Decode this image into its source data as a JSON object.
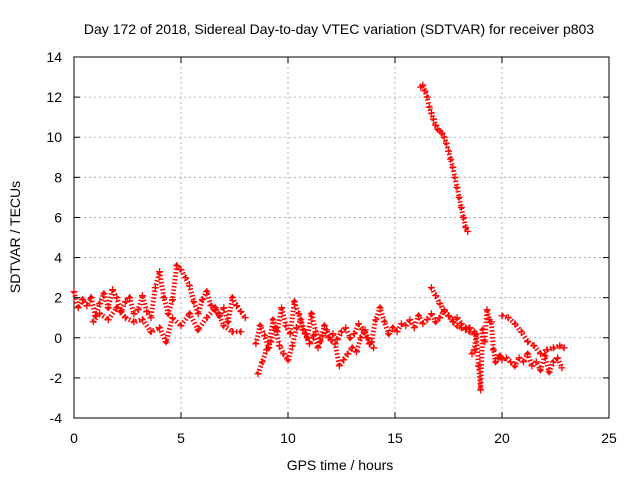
{
  "chart_data": {
    "type": "scatter",
    "title": "Day 172 of 2018, Sidereal Day-to-day VTEC variation (SDTVAR) for receiver p803",
    "xlabel": "GPS time / hours",
    "ylabel": "SDTVAR / TECUs",
    "xlim": [
      0,
      25
    ],
    "ylim": [
      -4,
      14
    ],
    "xticks": [
      0,
      5,
      10,
      15,
      20,
      25
    ],
    "yticks": [
      -4,
      -2,
      0,
      2,
      4,
      6,
      8,
      10,
      12,
      14
    ],
    "grid": true,
    "marker": "+",
    "series": [
      {
        "name": "SDTVAR",
        "color": "#ff0000",
        "segments": [
          {
            "x": [
              0.0,
              0.2,
              0.4,
              0.6,
              0.8,
              1.0,
              1.2,
              1.4,
              1.6,
              1.8,
              2.0,
              2.2,
              2.4,
              2.6,
              2.8,
              3.0,
              3.2,
              3.4,
              3.6,
              3.8,
              4.0,
              4.2,
              4.4,
              4.6,
              4.8,
              5.0,
              5.2,
              5.4,
              5.6,
              5.8,
              6.0,
              6.2,
              6.4,
              6.6,
              6.8,
              7.0,
              7.2,
              7.4,
              7.6,
              7.8,
              8.0
            ],
            "y": [
              2.3,
              1.5,
              1.9,
              1.6,
              2.0,
              1.1,
              1.7,
              2.2,
              1.5,
              2.4,
              2.0,
              1.3,
              1.8,
              2.0,
              1.2,
              1.4,
              2.1,
              1.3,
              1.0,
              2.5,
              3.3,
              2.0,
              1.2,
              1.9,
              3.6,
              3.4,
              3.0,
              2.6,
              1.8,
              1.2,
              1.9,
              2.3,
              1.6,
              1.4,
              1.1,
              1.5,
              0.8,
              2.0,
              1.6,
              1.3,
              1.0
            ]
          },
          {
            "x": [
              0.9,
              1.2,
              1.6,
              2.0,
              2.4,
              2.8,
              3.2,
              3.6,
              4.0,
              4.3,
              4.6,
              5.0,
              5.4,
              5.8,
              6.2,
              6.6,
              7.0,
              7.4,
              7.8
            ],
            "y": [
              0.8,
              1.2,
              0.9,
              1.5,
              1.0,
              0.8,
              0.9,
              0.3,
              0.5,
              -0.2,
              1.0,
              0.6,
              1.2,
              0.4,
              1.0,
              1.5,
              0.6,
              0.3,
              0.3
            ]
          },
          {
            "x": [
              8.5,
              8.7,
              8.9,
              9.1,
              9.3,
              9.5,
              9.7,
              9.9,
              10.1,
              10.3,
              10.5,
              10.7,
              10.9,
              11.1,
              11.3,
              11.5,
              11.7,
              11.9,
              12.1,
              12.3,
              12.5,
              12.7,
              12.9,
              13.1,
              13.3,
              13.5,
              13.7,
              13.9,
              14.1,
              14.3,
              14.5,
              14.7,
              14.9,
              15.1,
              15.3,
              15.5,
              15.7,
              15.9,
              16.1,
              16.3,
              16.5,
              16.7,
              16.9,
              17.1,
              17.3,
              17.5,
              17.7,
              17.9,
              18.1,
              18.3,
              18.5,
              18.7
            ],
            "y": [
              -0.3,
              0.6,
              0.1,
              -0.5,
              0.9,
              0.3,
              1.5,
              0.6,
              0.2,
              1.8,
              1.2,
              0.4,
              0.0,
              1.2,
              0.3,
              -0.2,
              0.6,
              0.0,
              0.2,
              -0.1,
              0.3,
              0.5,
              0.0,
              0.2,
              0.7,
              0.4,
              0.0,
              -0.2,
              0.9,
              1.5,
              0.8,
              0.2,
              0.5,
              0.3,
              0.7,
              0.6,
              0.9,
              0.5,
              1.1,
              0.7,
              0.9,
              1.2,
              0.8,
              1.0,
              1.4,
              1.1,
              0.9,
              1.0,
              0.7,
              0.5,
              0.5,
              0.3
            ]
          },
          {
            "x": [
              8.6,
              8.8,
              9.0,
              9.2,
              9.4,
              9.6,
              9.8,
              10.0,
              10.2,
              10.4,
              10.6,
              10.8,
              11.0,
              11.2,
              11.4,
              11.6,
              11.8,
              12.0,
              12.2,
              12.4,
              12.6,
              12.8,
              13.0,
              13.2,
              13.4,
              13.6,
              13.8,
              14.0
            ],
            "y": [
              -1.8,
              -1.2,
              -0.6,
              -0.2,
              0.5,
              -0.4,
              -0.8,
              -1.1,
              -0.4,
              0.5,
              0.9,
              0.2,
              -0.3,
              0.1,
              -0.5,
              0.1,
              0.4,
              -0.1,
              -0.3,
              -1.4,
              -1.1,
              -0.8,
              -0.5,
              -0.7,
              0.0,
              0.4,
              -0.3,
              -0.5
            ]
          },
          {
            "x": [
              16.7,
              16.9,
              17.1,
              17.3,
              17.5,
              17.7,
              17.9,
              18.1,
              18.3,
              18.5,
              18.7
            ],
            "y": [
              2.5,
              2.1,
              1.7,
              1.3,
              1.1,
              0.8,
              0.6,
              0.5,
              0.4,
              0.3,
              0.2
            ]
          },
          {
            "x": [
              16.2,
              16.3,
              16.4,
              16.5,
              16.6,
              16.7,
              16.8,
              16.9,
              17.0,
              17.1,
              17.2,
              17.3,
              17.4,
              17.5,
              17.6,
              17.7,
              17.8,
              17.9,
              18.0,
              18.1,
              18.2,
              18.3,
              18.4
            ],
            "y": [
              12.5,
              12.6,
              12.3,
              12.0,
              11.5,
              11.2,
              10.9,
              10.6,
              10.4,
              10.3,
              10.2,
              10.0,
              9.7,
              9.3,
              8.9,
              8.5,
              8.0,
              7.5,
              7.0,
              6.5,
              6.0,
              5.5,
              5.3
            ]
          },
          {
            "x": [
              18.6,
              18.7,
              18.8,
              18.9,
              19.0,
              19.1,
              19.2,
              19.3,
              19.4,
              19.5,
              19.6,
              19.7,
              19.8,
              19.9,
              20.0,
              20.2,
              20.4,
              20.6,
              20.8,
              21.0,
              21.2,
              21.4,
              21.6,
              21.8,
              22.0,
              22.2,
              22.4,
              22.6,
              22.8
            ],
            "y": [
              -0.8,
              -0.6,
              0.2,
              -1.4,
              -2.6,
              0.4,
              -0.2,
              1.4,
              0.9,
              0.8,
              -0.6,
              -1.2,
              -1.0,
              -0.9,
              -1.1,
              -1.0,
              -1.2,
              -1.4,
              -1.0,
              -1.2,
              -0.8,
              -1.4,
              -1.2,
              -1.6,
              -0.9,
              -1.7,
              -1.2,
              -1.0,
              -1.5
            ]
          },
          {
            "x": [
              20.0,
              20.3,
              20.6,
              20.9,
              21.2,
              21.5,
              21.8,
              22.1,
              22.4,
              22.7,
              22.9
            ],
            "y": [
              1.1,
              1.0,
              0.7,
              0.3,
              -0.2,
              -0.4,
              -0.8,
              -0.6,
              -0.5,
              -0.4,
              -0.5
            ]
          }
        ]
      }
    ]
  }
}
